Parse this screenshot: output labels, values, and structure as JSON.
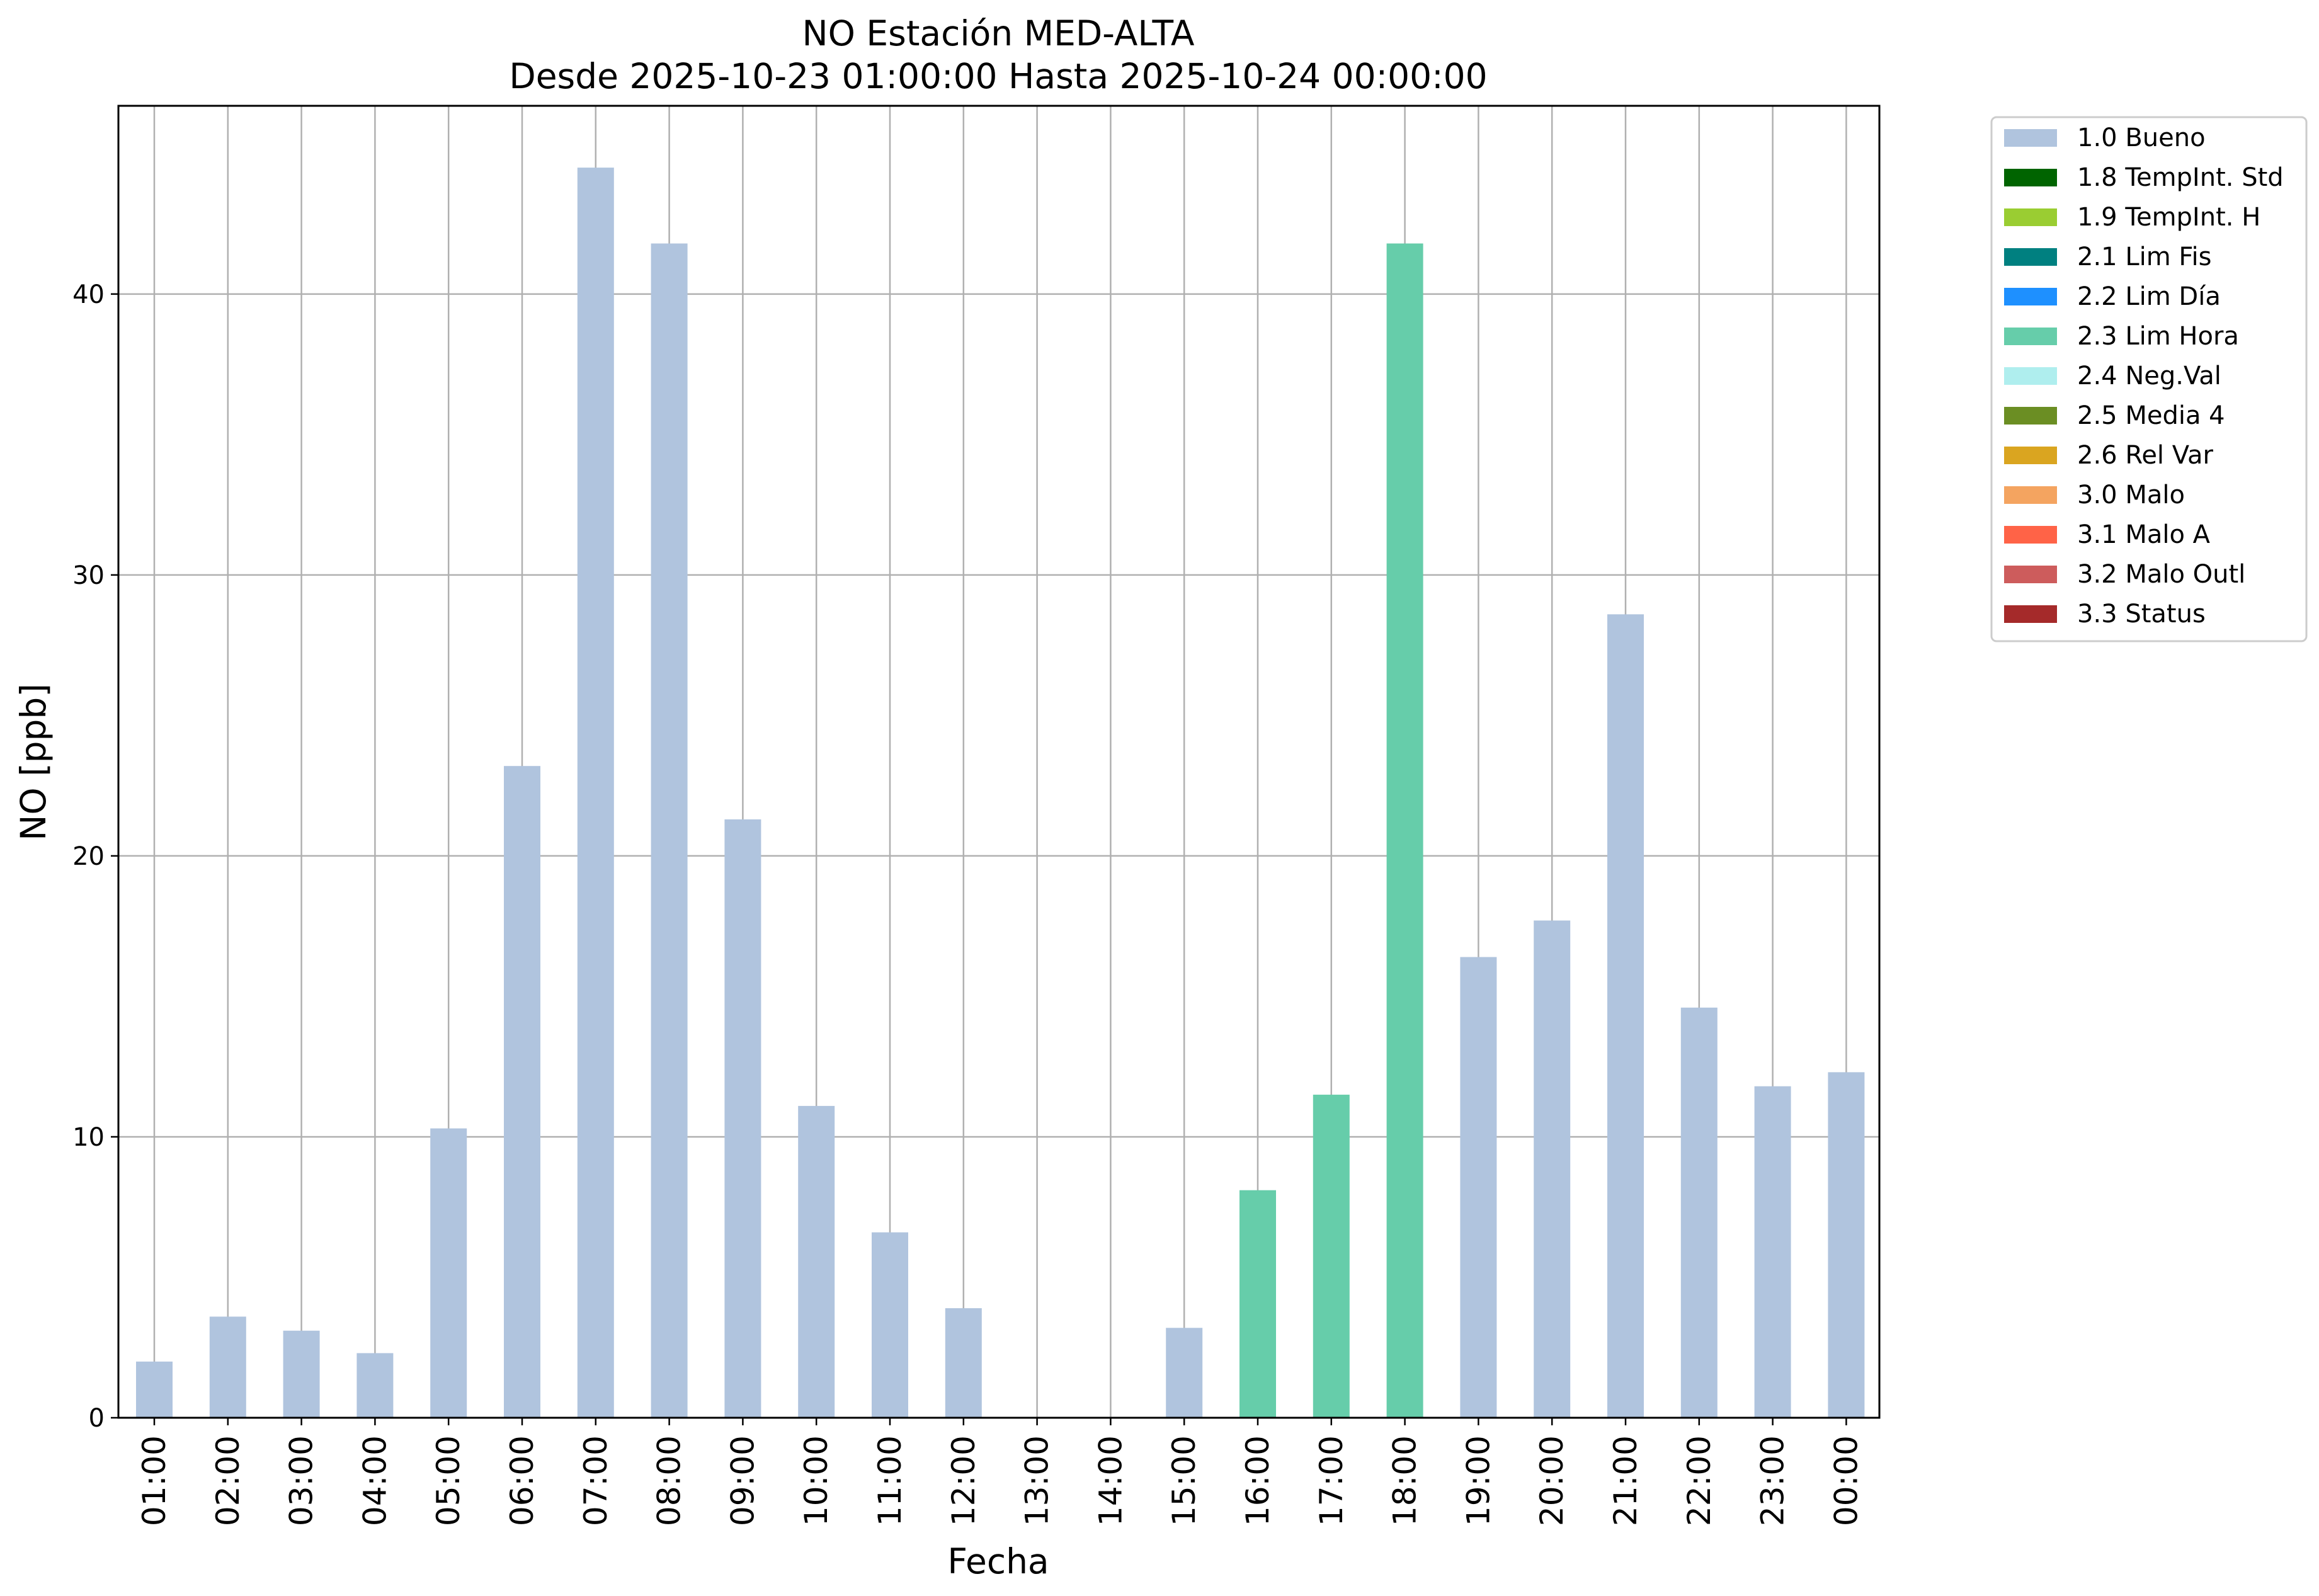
{
  "chart_data": {
    "type": "bar",
    "title": "NO Estación MED-ALTA",
    "subtitle": "Desde 2025-10-23 01:00:00 Hasta 2025-10-24 00:00:00",
    "xlabel": "Fecha",
    "ylabel": "NO [ppb]",
    "ylim": [
      0,
      46.7
    ],
    "yticks": [
      "0",
      "10",
      "20",
      "30",
      "40"
    ],
    "grid": true,
    "legend_position": "outside-top-right",
    "categories": [
      "01:00",
      "02:00",
      "03:00",
      "04:00",
      "05:00",
      "06:00",
      "07:00",
      "08:00",
      "09:00",
      "10:00",
      "11:00",
      "12:00",
      "13:00",
      "14:00",
      "15:00",
      "16:00",
      "17:00",
      "18:00",
      "19:00",
      "20:00",
      "21:00",
      "22:00",
      "23:00",
      "00:00"
    ],
    "values": [
      2.0,
      3.6,
      3.1,
      2.3,
      10.3,
      23.2,
      44.5,
      41.8,
      21.3,
      11.1,
      6.6,
      3.9,
      0,
      0,
      3.2,
      8.1,
      11.5,
      41.8,
      16.4,
      17.7,
      28.6,
      14.6,
      11.8,
      12.3
    ],
    "flags": [
      "1.0 Bueno",
      "1.0 Bueno",
      "1.0 Bueno",
      "1.0 Bueno",
      "1.0 Bueno",
      "1.0 Bueno",
      "1.0 Bueno",
      "1.0 Bueno",
      "1.0 Bueno",
      "1.0 Bueno",
      "1.0 Bueno",
      "1.0 Bueno",
      "1.0 Bueno",
      "1.0 Bueno",
      "1.0 Bueno",
      "2.3 Lim Hora",
      "2.3 Lim Hora",
      "2.3 Lim Hora",
      "1.0 Bueno",
      "1.0 Bueno",
      "1.0 Bueno",
      "1.0 Bueno",
      "1.0 Bueno",
      "1.0 Bueno"
    ],
    "legend": [
      {
        "name": "1.0 Bueno",
        "color": "#b0c4de"
      },
      {
        "name": "1.8 TempInt. Std",
        "color": "#006400"
      },
      {
        "name": "1.9 TempInt. H",
        "color": "#9acd32"
      },
      {
        "name": "2.1 Lim Fis",
        "color": "#008080"
      },
      {
        "name": "2.2 Lim Día",
        "color": "#1e90ff"
      },
      {
        "name": "2.3 Lim Hora",
        "color": "#66cdaa"
      },
      {
        "name": "2.4 Neg.Val",
        "color": "#afeeee"
      },
      {
        "name": "2.5 Media 4",
        "color": "#6b8e23"
      },
      {
        "name": "2.6 Rel Var",
        "color": "#daa520"
      },
      {
        "name": "3.0 Malo",
        "color": "#f4a460"
      },
      {
        "name": "3.1 Malo A",
        "color": "#ff6347"
      },
      {
        "name": "3.2 Malo Outl",
        "color": "#cd5c5c"
      },
      {
        "name": "3.3 Status",
        "color": "#a52a2a"
      }
    ]
  }
}
